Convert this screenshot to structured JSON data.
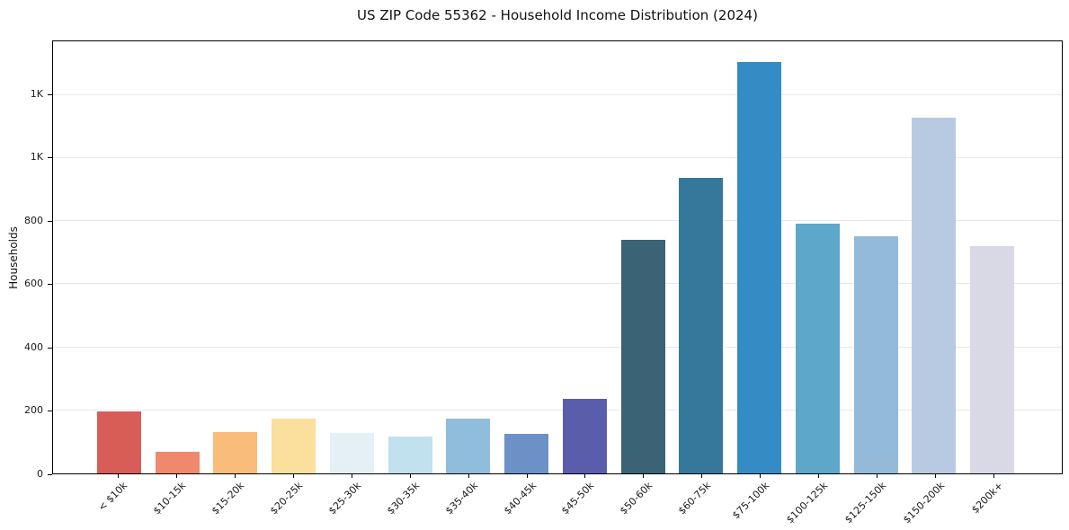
{
  "chart_data": {
    "type": "bar",
    "title": "US ZIP Code 55362 - Household Income Distribution (2024)",
    "ylabel": "Households",
    "xlabel": "",
    "categories": [
      "< $10k",
      "$10-15k",
      "$15-20k",
      "$20-25k",
      "$25-30k",
      "$30-35k",
      "$35-40k",
      "$40-45k",
      "$45-50k",
      "$50-60k",
      "$60-75k",
      "$75-100k",
      "$100-125k",
      "$125-150k",
      "$150-200k",
      "$200k+"
    ],
    "values": [
      197,
      67,
      130,
      174,
      127,
      118,
      174,
      126,
      236,
      740,
      938,
      1305,
      792,
      751,
      1128,
      720
    ],
    "bar_colors": [
      "#d85c57",
      "#f0886c",
      "#f9bc7b",
      "#fbdf9c",
      "#e4f0f6",
      "#c0e1ed",
      "#91bddc",
      "#6b91c6",
      "#5a5dac",
      "#3a6375",
      "#36789c",
      "#358cc4",
      "#5da7ca",
      "#93bad8",
      "#b8cae2",
      "#d8d9e4"
    ],
    "ylim": [
      0,
      1370
    ],
    "yticks": [
      {
        "value": 0,
        "label": "0"
      },
      {
        "value": 200,
        "label": "200"
      },
      {
        "value": 400,
        "label": "400"
      },
      {
        "value": 600,
        "label": "600"
      },
      {
        "value": 800,
        "label": "800"
      },
      {
        "value": 1000,
        "label": "1K"
      },
      {
        "value": 1200,
        "label": "1K"
      }
    ],
    "grid": "horizontal",
    "legend": "none"
  }
}
